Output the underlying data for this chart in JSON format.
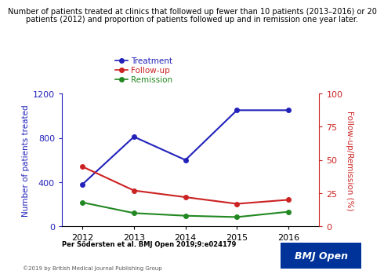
{
  "years": [
    2012,
    2013,
    2014,
    2015,
    2016
  ],
  "treatment": [
    380,
    810,
    600,
    1050,
    1050
  ],
  "followup": [
    45,
    27,
    22,
    17,
    20
  ],
  "remission": [
    18,
    10,
    8,
    7,
    11
  ],
  "treatment_color": "#2222bb",
  "followup_color": "#cc2222",
  "remission_color": "#228822",
  "left_ylim": [
    0,
    1200
  ],
  "right_ylim": [
    0,
    100
  ],
  "left_yticks": [
    0,
    400,
    800,
    1200
  ],
  "right_yticks": [
    0,
    25,
    50,
    75,
    100
  ],
  "left_ylabel": "Number of patients treated",
  "right_ylabel": "Follow-up/Remission (%)",
  "title_line1": "Number of patients treated at clinics that followed up fewer than 10 patients (2013–2016) or 20",
  "title_line2": "patients (2012) and proportion of patients followed up and in remission one year later.",
  "legend_labels": [
    "Treatment",
    "Follow-up",
    "Remission"
  ],
  "citation": "Per Södersten et al. BMJ Open 2019;9:e024179",
  "copyright": "©2019 by British Medical Journal Publishing Group",
  "bmj_box_color": "#003399",
  "bmj_text": "BMJ Open",
  "bg_color": "#ffffff"
}
